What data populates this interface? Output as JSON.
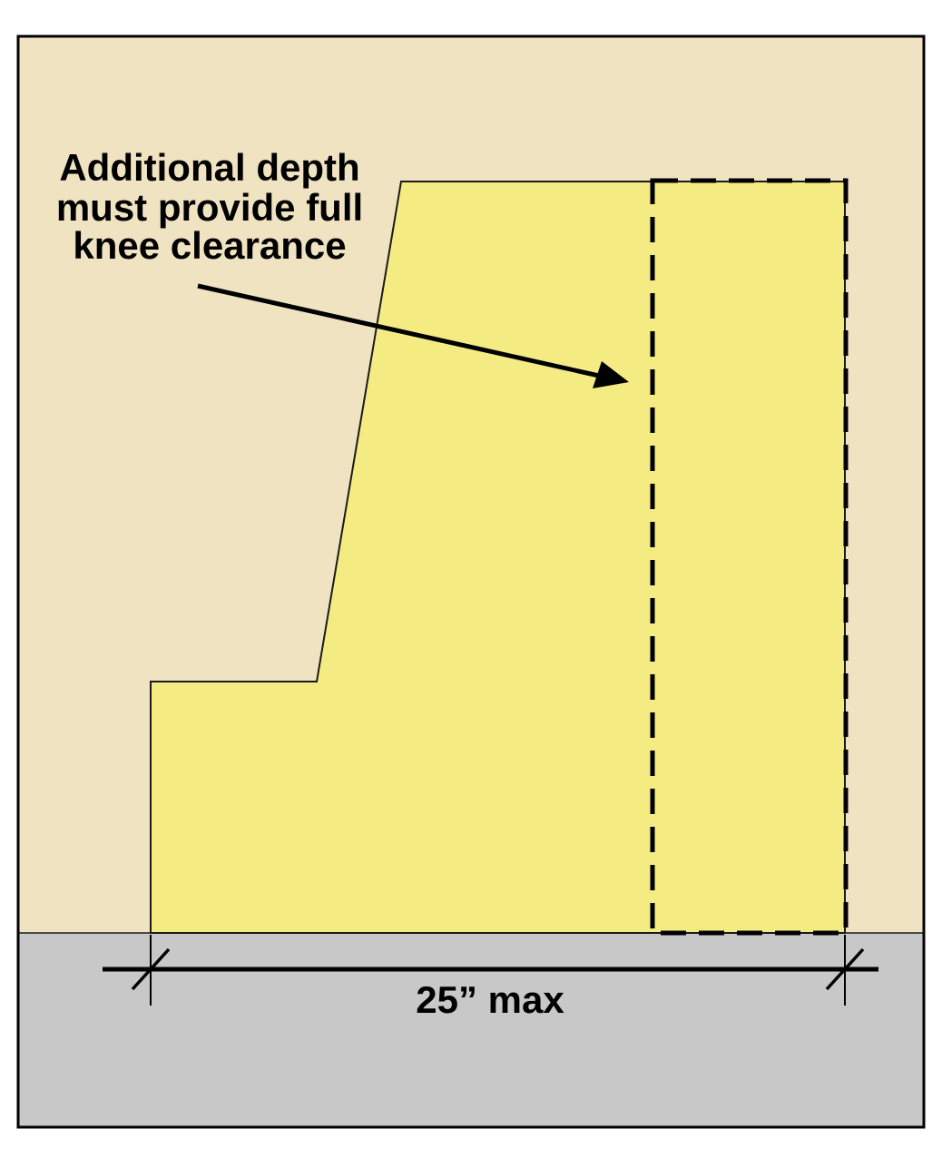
{
  "annotation": {
    "lines": [
      "Additional depth",
      "must provide full",
      "knee clearance"
    ]
  },
  "dimension": {
    "label": "25” max"
  },
  "colors": {
    "wall": "#f0e3c2",
    "floor": "#c8c8c8",
    "clearance_space": "#f4ec82",
    "border": "#000000",
    "outline": "#1a1a1a"
  },
  "icons": {
    "annotation_pointer": "arrow-icon",
    "dimension_end_marks": "tick-mark-icon"
  }
}
